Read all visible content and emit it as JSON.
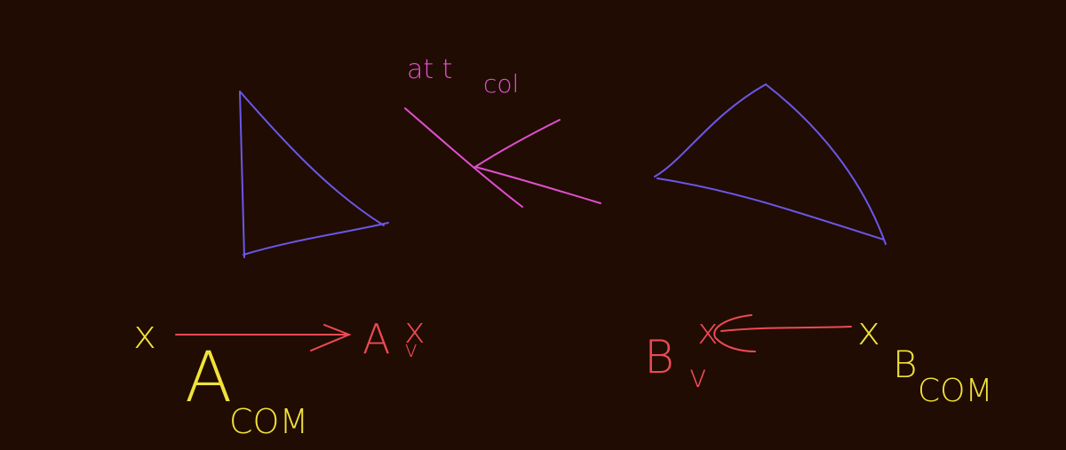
{
  "annotation": {
    "main": "at t",
    "sub": "col"
  },
  "left_label": {
    "main": "x",
    "sub": "A",
    "subsub": "COM"
  },
  "left_target": {
    "main": "A",
    "over": "x",
    "sub": "v"
  },
  "right_target": {
    "main": "B",
    "over": "x",
    "sub": "v"
  },
  "right_label": {
    "main": "x",
    "sub": "B",
    "subsub": "COM"
  }
}
